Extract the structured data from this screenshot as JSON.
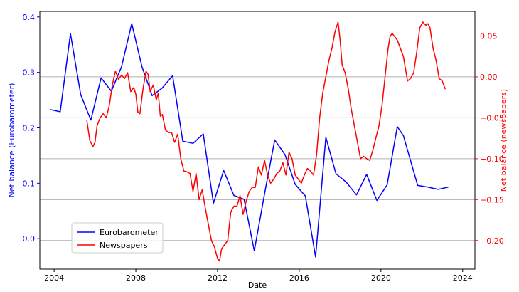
{
  "colors": {
    "left_axis": "#0000ff",
    "right_axis": "#ff0000",
    "grid": "#b0b0b0",
    "frame": "#000000"
  },
  "chart_data": {
    "type": "line",
    "dual_axis": true,
    "title": "",
    "xlabel": "Date",
    "ylabel_left": "Net balance (Eurobarometer)",
    "ylabel_right": "Net balance (newspapers)",
    "xlim": [
      2003.3,
      2024.6
    ],
    "ylim_left": [
      -0.055,
      0.41
    ],
    "ylim_right": [
      -0.235,
      0.08
    ],
    "x_ticks": [
      2004,
      2008,
      2012,
      2016,
      2020,
      2024
    ],
    "x_tick_labels": [
      "2004",
      "2008",
      "2012",
      "2016",
      "2020",
      "2024"
    ],
    "y_left_ticks": [
      0.0,
      0.1,
      0.2,
      0.3,
      0.4
    ],
    "y_left_tick_labels": [
      "0.0",
      "0.1",
      "0.2",
      "0.3",
      "0.4"
    ],
    "y_right_ticks": [
      -0.2,
      -0.15,
      -0.1,
      -0.05,
      0.0,
      0.05
    ],
    "y_right_tick_labels": [
      "−0.20",
      "−0.15",
      "−0.10",
      "−0.05",
      "0.00",
      "0.05"
    ],
    "grid": "horizontal lines at right-axis ticks",
    "legend_position": "lower-left",
    "series": [
      {
        "name": "Eurobarometer",
        "axis": "left",
        "color": "#0000ff",
        "x": [
          2003.8,
          2004.3,
          2004.8,
          2005.3,
          2005.8,
          2006.3,
          2006.8,
          2007.3,
          2007.8,
          2008.3,
          2008.8,
          2009.3,
          2009.8,
          2010.3,
          2010.8,
          2011.3,
          2011.8,
          2012.3,
          2012.8,
          2013.3,
          2013.8,
          2014.3,
          2014.8,
          2015.3,
          2015.8,
          2016.3,
          2016.8,
          2017.3,
          2017.8,
          2018.3,
          2018.8,
          2019.3,
          2019.8,
          2020.3,
          2020.8,
          2021.1,
          2021.8,
          2022.3,
          2022.8,
          2023.3
        ],
        "y": [
          0.233,
          0.229,
          0.37,
          0.26,
          0.214,
          0.29,
          0.266,
          0.31,
          0.388,
          0.31,
          0.258,
          0.272,
          0.294,
          0.176,
          0.172,
          0.189,
          0.064,
          0.123,
          0.078,
          0.071,
          -0.022,
          0.081,
          0.178,
          0.152,
          0.098,
          0.077,
          -0.033,
          0.183,
          0.117,
          0.102,
          0.079,
          0.116,
          0.069,
          0.097,
          0.202,
          0.186,
          0.096,
          0.093,
          0.089,
          0.093
        ]
      },
      {
        "name": "Newspapers",
        "axis": "right",
        "color": "#ff0000",
        "x": [
          2005.6,
          2005.75,
          2005.9,
          2006.0,
          2006.1,
          2006.25,
          2006.4,
          2006.55,
          2006.7,
          2006.85,
          2007.0,
          2007.15,
          2007.3,
          2007.45,
          2007.6,
          2007.75,
          2007.9,
          2008.0,
          2008.1,
          2008.2,
          2008.35,
          2008.5,
          2008.6,
          2008.7,
          2008.85,
          2009.0,
          2009.1,
          2009.2,
          2009.3,
          2009.45,
          2009.6,
          2009.75,
          2009.9,
          2010.05,
          2010.2,
          2010.35,
          2010.5,
          2010.65,
          2010.8,
          2010.95,
          2011.1,
          2011.25,
          2011.4,
          2011.55,
          2011.7,
          2011.85,
          2012.0,
          2012.1,
          2012.2,
          2012.35,
          2012.5,
          2012.65,
          2012.8,
          2012.95,
          2013.1,
          2013.25,
          2013.4,
          2013.55,
          2013.7,
          2013.85,
          2014.0,
          2014.15,
          2014.3,
          2014.45,
          2014.6,
          2014.75,
          2014.9,
          2015.05,
          2015.2,
          2015.35,
          2015.5,
          2015.65,
          2015.8,
          2015.95,
          2016.1,
          2016.25,
          2016.4,
          2016.55,
          2016.7,
          2016.85,
          2017.0,
          2017.15,
          2017.3,
          2017.45,
          2017.6,
          2017.75,
          2017.9,
          2018.0,
          2018.1,
          2018.25,
          2018.4,
          2018.55,
          2018.7,
          2018.85,
          2019.0,
          2019.15,
          2019.3,
          2019.45,
          2019.6,
          2019.75,
          2019.9,
          2020.05,
          2020.2,
          2020.35,
          2020.45,
          2020.55,
          2020.65,
          2020.8,
          2020.95,
          2021.1,
          2021.2,
          2021.3,
          2021.45,
          2021.6,
          2021.75,
          2021.9,
          2022.05,
          2022.2,
          2022.3,
          2022.4,
          2022.55,
          2022.7,
          2022.85,
          2023.0,
          2023.15
        ],
        "y": [
          -0.053,
          -0.078,
          -0.085,
          -0.08,
          -0.06,
          -0.05,
          -0.045,
          -0.05,
          -0.035,
          -0.01,
          0.007,
          -0.003,
          0.002,
          -0.002,
          0.005,
          -0.018,
          -0.013,
          -0.021,
          -0.043,
          -0.045,
          -0.015,
          0.007,
          0.003,
          -0.018,
          -0.01,
          -0.028,
          -0.02,
          -0.048,
          -0.046,
          -0.065,
          -0.068,
          -0.068,
          -0.08,
          -0.07,
          -0.1,
          -0.115,
          -0.116,
          -0.118,
          -0.14,
          -0.118,
          -0.15,
          -0.138,
          -0.16,
          -0.18,
          -0.2,
          -0.208,
          -0.222,
          -0.225,
          -0.21,
          -0.205,
          -0.2,
          -0.165,
          -0.158,
          -0.158,
          -0.145,
          -0.168,
          -0.152,
          -0.14,
          -0.135,
          -0.135,
          -0.11,
          -0.12,
          -0.102,
          -0.12,
          -0.13,
          -0.125,
          -0.118,
          -0.115,
          -0.105,
          -0.12,
          -0.092,
          -0.1,
          -0.12,
          -0.125,
          -0.13,
          -0.12,
          -0.112,
          -0.115,
          -0.12,
          -0.095,
          -0.05,
          -0.02,
          0.0,
          0.02,
          0.035,
          0.055,
          0.067,
          0.045,
          0.015,
          0.005,
          -0.015,
          -0.04,
          -0.06,
          -0.08,
          -0.1,
          -0.097,
          -0.1,
          -0.102,
          -0.09,
          -0.075,
          -0.06,
          -0.035,
          0.0,
          0.035,
          0.05,
          0.053,
          0.05,
          0.045,
          0.035,
          0.025,
          0.01,
          -0.005,
          -0.002,
          0.005,
          0.03,
          0.06,
          0.067,
          0.063,
          0.065,
          0.06,
          0.035,
          0.02,
          -0.002,
          -0.005,
          -0.015
        ]
      }
    ]
  }
}
